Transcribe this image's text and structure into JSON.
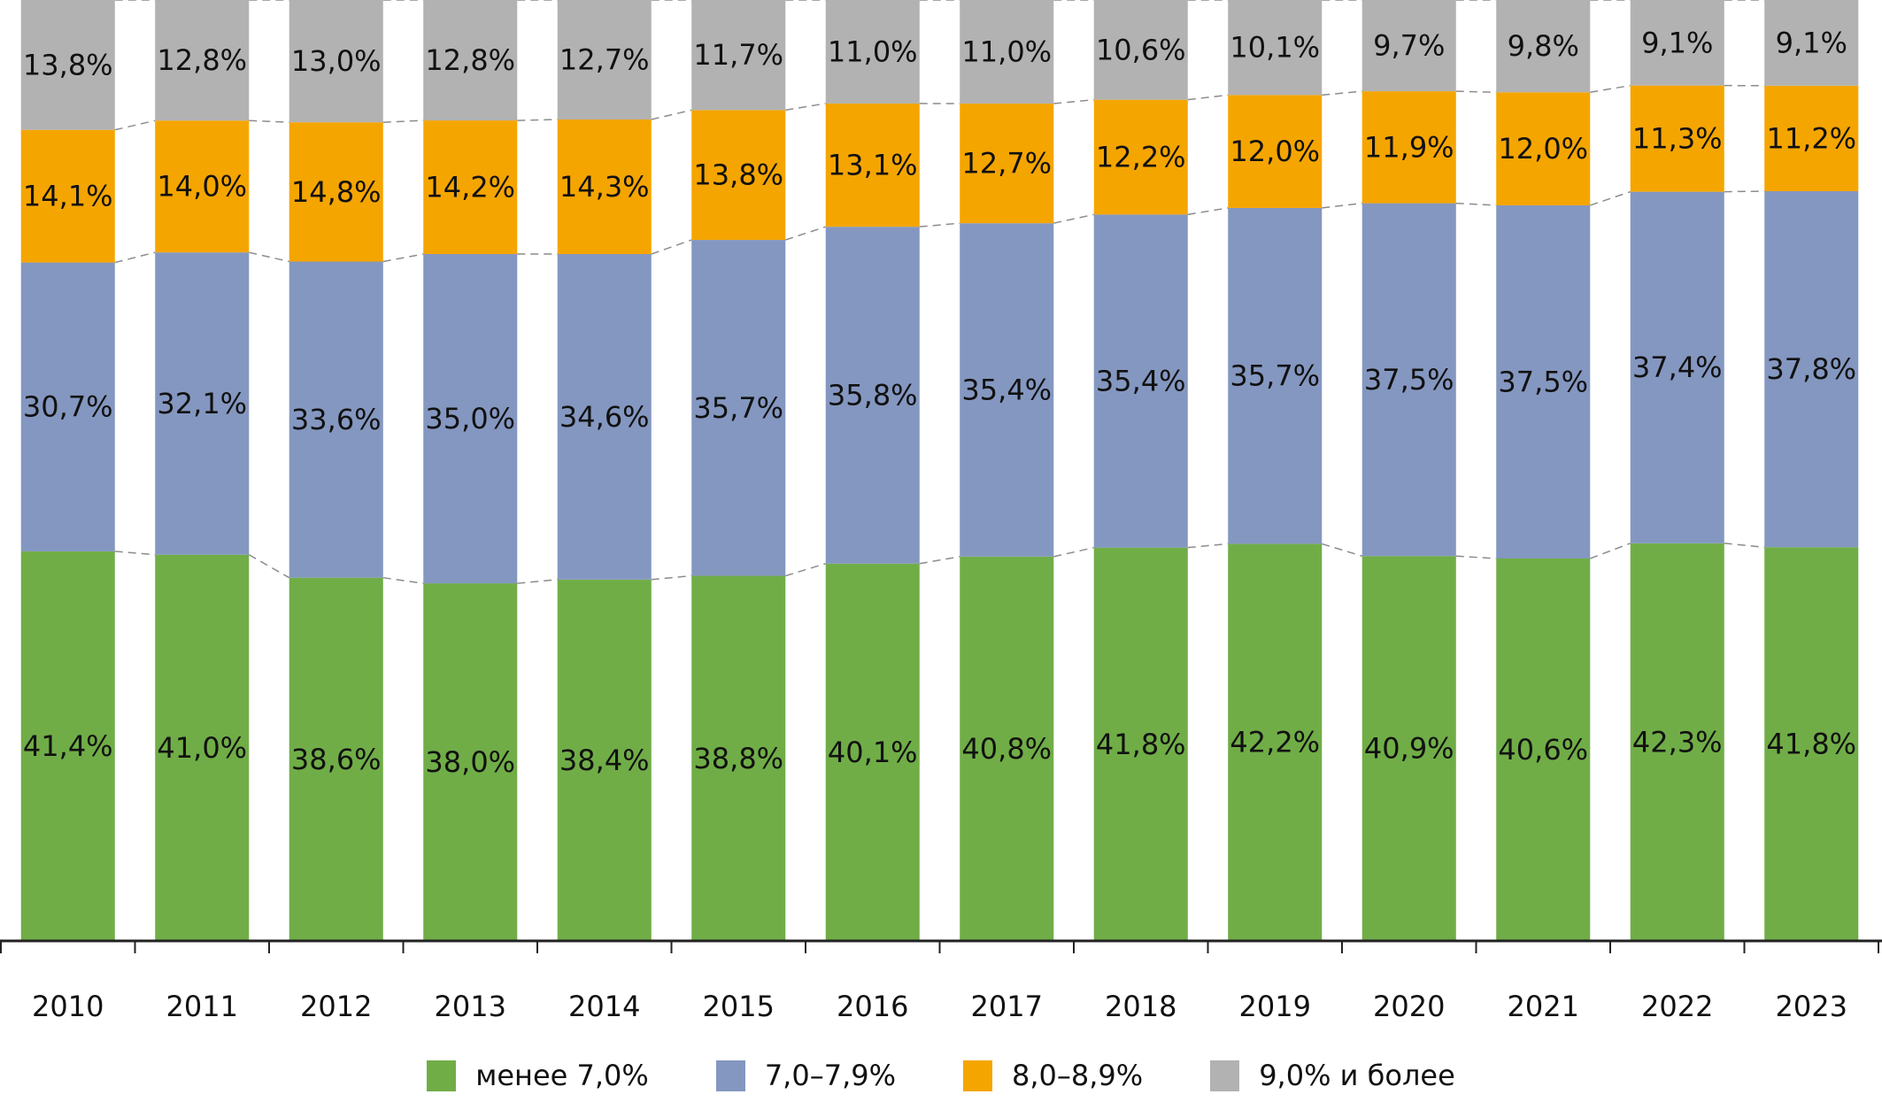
{
  "chart_data": {
    "type": "bar",
    "stacked": true,
    "title": "",
    "xlabel": "",
    "ylabel": "",
    "ylim": [
      0,
      100
    ],
    "grid": false,
    "legend_position": "bottom",
    "categories": [
      "2010",
      "2011",
      "2012",
      "2013",
      "2014",
      "2015",
      "2016",
      "2017",
      "2018",
      "2019",
      "2020",
      "2021",
      "2022",
      "2023"
    ],
    "series": [
      {
        "name": "менее 7,0%",
        "color": "#70AD47",
        "values": [
          41.4,
          41.0,
          38.6,
          38.0,
          38.4,
          38.8,
          40.1,
          40.8,
          41.8,
          42.2,
          40.9,
          40.6,
          42.3,
          41.8
        ],
        "labels": [
          "41,4%",
          "41,0%",
          "38,6%",
          "38,0%",
          "38,4%",
          "38,8%",
          "40,1%",
          "40,8%",
          "41,8%",
          "42,2%",
          "40,9%",
          "40,6%",
          "42,3%",
          "41,8%"
        ]
      },
      {
        "name": "7,0–7,9%",
        "color": "#8497C0",
        "values": [
          30.7,
          32.1,
          33.6,
          35.0,
          34.6,
          35.7,
          35.8,
          35.4,
          35.4,
          35.7,
          37.5,
          37.5,
          37.4,
          37.8
        ],
        "labels": [
          "30,7%",
          "32,1%",
          "33,6%",
          "35,0%",
          "34,6%",
          "35,7%",
          "35,8%",
          "35,4%",
          "35,4%",
          "35,7%",
          "37,5%",
          "37,5%",
          "37,4%",
          "37,8%"
        ]
      },
      {
        "name": "8,0–8,9%",
        "color": "#F5A500",
        "values": [
          14.1,
          14.0,
          14.8,
          14.2,
          14.3,
          13.8,
          13.1,
          12.7,
          12.2,
          12.0,
          11.9,
          12.0,
          11.3,
          11.2
        ],
        "labels": [
          "14,1%",
          "14,0%",
          "14,8%",
          "14,2%",
          "14,3%",
          "13,8%",
          "13,1%",
          "12,7%",
          "12,2%",
          "12,0%",
          "11,9%",
          "12,0%",
          "11,3%",
          "11,2%"
        ]
      },
      {
        "name": "9,0% и более",
        "color": "#B2B2B2",
        "values": [
          13.8,
          12.8,
          13.0,
          12.8,
          12.7,
          11.7,
          11.0,
          11.0,
          10.6,
          10.1,
          9.7,
          9.8,
          9.1,
          9.1
        ],
        "labels": [
          "13,8%",
          "12,8%",
          "13,0%",
          "12,8%",
          "12,7%",
          "11,7%",
          "11,0%",
          "11,0%",
          "10,6%",
          "10,1%",
          "9,7%",
          "9,8%",
          "9,1%",
          "9,1%"
        ]
      }
    ]
  },
  "legend": {
    "items": [
      {
        "label": "менее 7,0%",
        "color": "#70AD47"
      },
      {
        "label": "7,0–7,9%",
        "color": "#8497C0"
      },
      {
        "label": "8,0–8,9%",
        "color": "#F5A500"
      },
      {
        "label": "9,0% и более",
        "color": "#B2B2B2"
      }
    ]
  }
}
